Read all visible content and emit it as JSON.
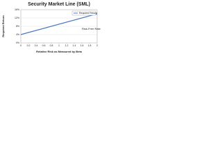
{
  "chart_data": {
    "type": "line",
    "title": "Security Market Line (SML)",
    "x_label": "Relative Risk as Measured by Beta",
    "y_label": "Required Return",
    "annotation": "Risk-Free Rate",
    "x": [
      0,
      2
    ],
    "series": [
      {
        "name": "Required Return",
        "color": "#4a78c2",
        "values": [
          4,
          14
        ]
      }
    ],
    "xlim": [
      0,
      2
    ],
    "xticks": [
      0,
      0.2,
      0.4,
      0.6,
      0.8,
      1,
      1.2,
      1.4,
      1.6,
      1.8,
      2
    ],
    "ylim": [
      0,
      16
    ],
    "yticks": [
      {
        "value": 0,
        "label": "0%"
      },
      {
        "value": 4,
        "label": "4%"
      },
      {
        "value": 8,
        "label": "8%"
      },
      {
        "value": 12,
        "label": "12%"
      },
      {
        "value": 16,
        "label": "16%"
      }
    ],
    "grid": true,
    "legend": "top-right"
  }
}
